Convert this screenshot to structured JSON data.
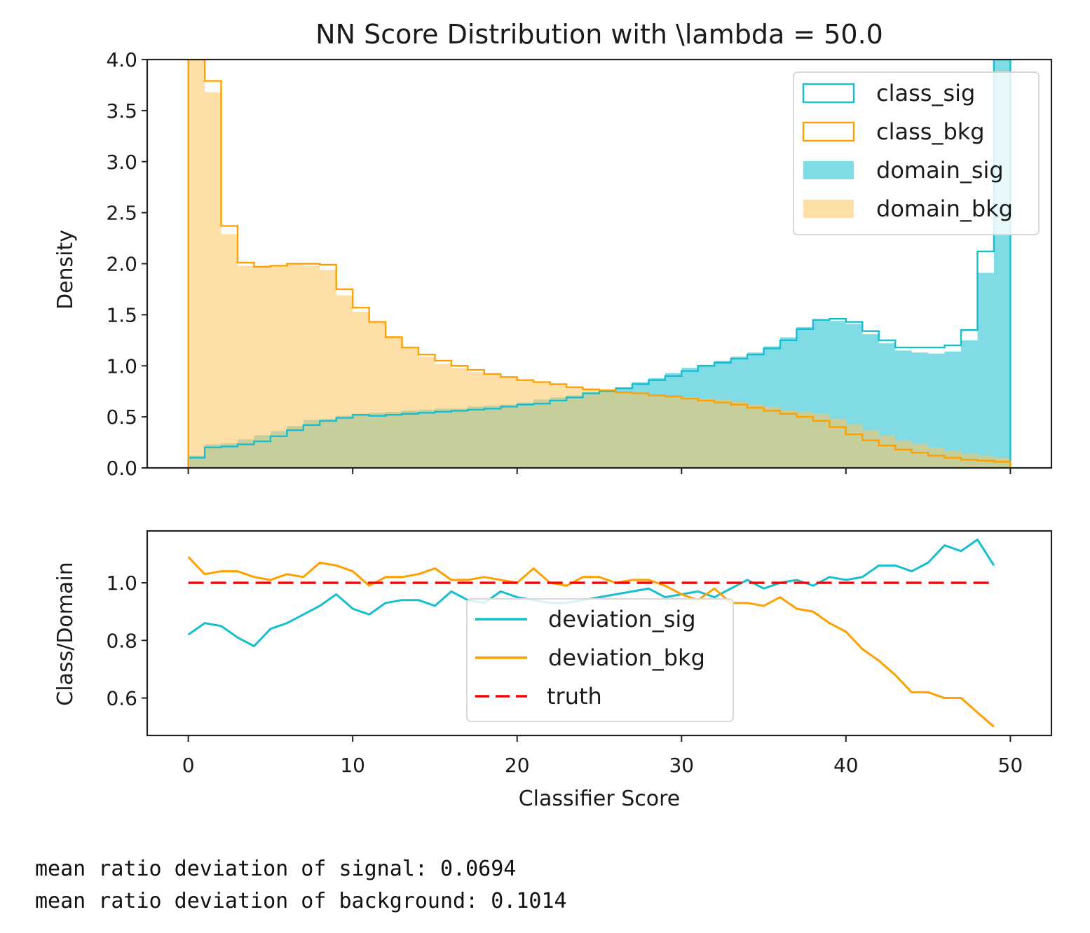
{
  "chart_data": [
    {
      "type": "histogram",
      "title": "NN Score  Distribution with \\lambda = 50.0",
      "xlabel": "",
      "ylabel": "Density",
      "xlim": [
        -2.5,
        52.5
      ],
      "ylim": [
        0,
        4.0
      ],
      "yticks": [
        "0.0",
        "0.5",
        "1.0",
        "1.5",
        "2.0",
        "2.5",
        "3.0",
        "3.5",
        "4.0"
      ],
      "ytick_values": [
        0,
        0.5,
        1.0,
        1.5,
        2.0,
        2.5,
        3.0,
        3.5,
        4.0
      ],
      "xtick_values": [
        0,
        10,
        20,
        30,
        40,
        50
      ],
      "bin_edges_start": 0,
      "bin_width": 1,
      "legend_position": "upper right",
      "series": [
        {
          "name": "class_sig",
          "style": "step",
          "color": "#17BECF",
          "values": [
            0.1,
            0.2,
            0.21,
            0.23,
            0.26,
            0.31,
            0.37,
            0.42,
            0.46,
            0.49,
            0.52,
            0.51,
            0.52,
            0.53,
            0.54,
            0.55,
            0.56,
            0.57,
            0.58,
            0.6,
            0.62,
            0.63,
            0.66,
            0.69,
            0.73,
            0.75,
            0.78,
            0.82,
            0.86,
            0.9,
            0.95,
            1.0,
            1.03,
            1.07,
            1.11,
            1.17,
            1.25,
            1.36,
            1.45,
            1.46,
            1.43,
            1.34,
            1.25,
            1.18,
            1.18,
            1.18,
            1.2,
            1.35,
            2.12,
            4.0
          ]
        },
        {
          "name": "class_bkg",
          "style": "step",
          "color": "#FF9F00",
          "values": [
            4.0,
            3.79,
            2.37,
            2.01,
            1.97,
            1.98,
            2.0,
            2.0,
            1.99,
            1.75,
            1.57,
            1.43,
            1.28,
            1.18,
            1.11,
            1.05,
            1.0,
            0.96,
            0.92,
            0.89,
            0.86,
            0.84,
            0.82,
            0.79,
            0.77,
            0.76,
            0.74,
            0.73,
            0.71,
            0.7,
            0.68,
            0.66,
            0.64,
            0.62,
            0.59,
            0.56,
            0.53,
            0.5,
            0.46,
            0.4,
            0.33,
            0.27,
            0.22,
            0.18,
            0.15,
            0.12,
            0.1,
            0.08,
            0.07,
            0.06
          ]
        },
        {
          "name": "domain_sig",
          "style": "filled",
          "color": "#17BECF",
          "values": [
            0.12,
            0.23,
            0.24,
            0.28,
            0.32,
            0.36,
            0.41,
            0.47,
            0.48,
            0.51,
            0.53,
            0.54,
            0.55,
            0.56,
            0.57,
            0.58,
            0.58,
            0.6,
            0.61,
            0.62,
            0.64,
            0.67,
            0.69,
            0.71,
            0.74,
            0.76,
            0.79,
            0.84,
            0.88,
            0.93,
            0.98,
            1.01,
            1.05,
            1.09,
            1.13,
            1.19,
            1.28,
            1.38,
            1.45,
            1.44,
            1.41,
            1.31,
            1.22,
            1.15,
            1.13,
            1.12,
            1.14,
            1.25,
            1.91,
            4.0
          ]
        },
        {
          "name": "domain_bkg",
          "style": "filled",
          "color": "#FFC561",
          "values": [
            4.0,
            3.68,
            2.29,
            1.98,
            1.96,
            1.97,
            1.99,
            1.98,
            1.94,
            1.69,
            1.53,
            1.43,
            1.29,
            1.17,
            1.09,
            1.02,
            0.98,
            0.94,
            0.91,
            0.88,
            0.85,
            0.83,
            0.82,
            0.79,
            0.77,
            0.75,
            0.74,
            0.72,
            0.71,
            0.7,
            0.69,
            0.68,
            0.67,
            0.65,
            0.62,
            0.6,
            0.57,
            0.55,
            0.53,
            0.48,
            0.43,
            0.37,
            0.32,
            0.27,
            0.24,
            0.2,
            0.17,
            0.14,
            0.12,
            0.1
          ]
        }
      ]
    },
    {
      "type": "line",
      "title": "",
      "xlabel": "Classifier Score",
      "ylabel": "Class/Domain",
      "xlim": [
        -2.5,
        52.5
      ],
      "ylim": [
        0.47,
        1.18
      ],
      "yticks": [
        "0.6",
        "0.8",
        "1.0"
      ],
      "ytick_values": [
        0.6,
        0.8,
        1.0
      ],
      "xticks": [
        "0",
        "10",
        "20",
        "30",
        "40",
        "50"
      ],
      "xtick_values": [
        0,
        10,
        20,
        30,
        40,
        50
      ],
      "legend_position": "lower center",
      "series": [
        {
          "name": "deviation_sig",
          "color": "#17BECF",
          "dash": "solid",
          "x": [
            0,
            1,
            2,
            3,
            4,
            5,
            6,
            7,
            8,
            9,
            10,
            11,
            12,
            13,
            14,
            15,
            16,
            17,
            18,
            19,
            20,
            21,
            22,
            23,
            24,
            25,
            26,
            27,
            28,
            29,
            30,
            31,
            32,
            33,
            34,
            35,
            36,
            37,
            38,
            39,
            40,
            41,
            42,
            43,
            44,
            45,
            46,
            47,
            48,
            49
          ],
          "y": [
            0.82,
            0.86,
            0.85,
            0.81,
            0.78,
            0.84,
            0.86,
            0.89,
            0.92,
            0.96,
            0.91,
            0.89,
            0.93,
            0.94,
            0.94,
            0.92,
            0.97,
            0.94,
            0.93,
            0.97,
            0.95,
            0.94,
            0.93,
            0.93,
            0.94,
            0.95,
            0.96,
            0.97,
            0.98,
            0.95,
            0.96,
            0.97,
            0.95,
            0.98,
            1.01,
            0.98,
            1.0,
            1.01,
            0.99,
            1.02,
            1.01,
            1.02,
            1.06,
            1.06,
            1.04,
            1.07,
            1.13,
            1.11,
            1.15,
            1.06
          ]
        },
        {
          "name": "deviation_bkg",
          "color": "#FF9F00",
          "dash": "solid",
          "x": [
            0,
            1,
            2,
            3,
            4,
            5,
            6,
            7,
            8,
            9,
            10,
            11,
            12,
            13,
            14,
            15,
            16,
            17,
            18,
            19,
            20,
            21,
            22,
            23,
            24,
            25,
            26,
            27,
            28,
            29,
            30,
            31,
            32,
            33,
            34,
            35,
            36,
            37,
            38,
            39,
            40,
            41,
            42,
            43,
            44,
            45,
            46,
            47,
            48,
            49
          ],
          "y": [
            1.09,
            1.03,
            1.04,
            1.04,
            1.02,
            1.01,
            1.03,
            1.02,
            1.07,
            1.06,
            1.04,
            0.99,
            1.02,
            1.02,
            1.03,
            1.05,
            1.01,
            1.01,
            1.02,
            1.01,
            1.0,
            1.05,
            1.0,
            0.99,
            1.02,
            1.02,
            1.0,
            1.01,
            1.01,
            0.99,
            0.96,
            0.94,
            0.98,
            0.93,
            0.93,
            0.92,
            0.95,
            0.91,
            0.9,
            0.86,
            0.83,
            0.77,
            0.73,
            0.68,
            0.62,
            0.62,
            0.6,
            0.6,
            0.55,
            0.5
          ]
        },
        {
          "name": "truth",
          "color": "#FF0000",
          "dash": "dashed",
          "x": [
            0,
            49
          ],
          "y": [
            1.0,
            1.0
          ]
        }
      ]
    }
  ],
  "output_text": {
    "line1": "mean ratio deviation of signal: 0.0694",
    "line2": "mean ratio deviation of background: 0.1014"
  }
}
